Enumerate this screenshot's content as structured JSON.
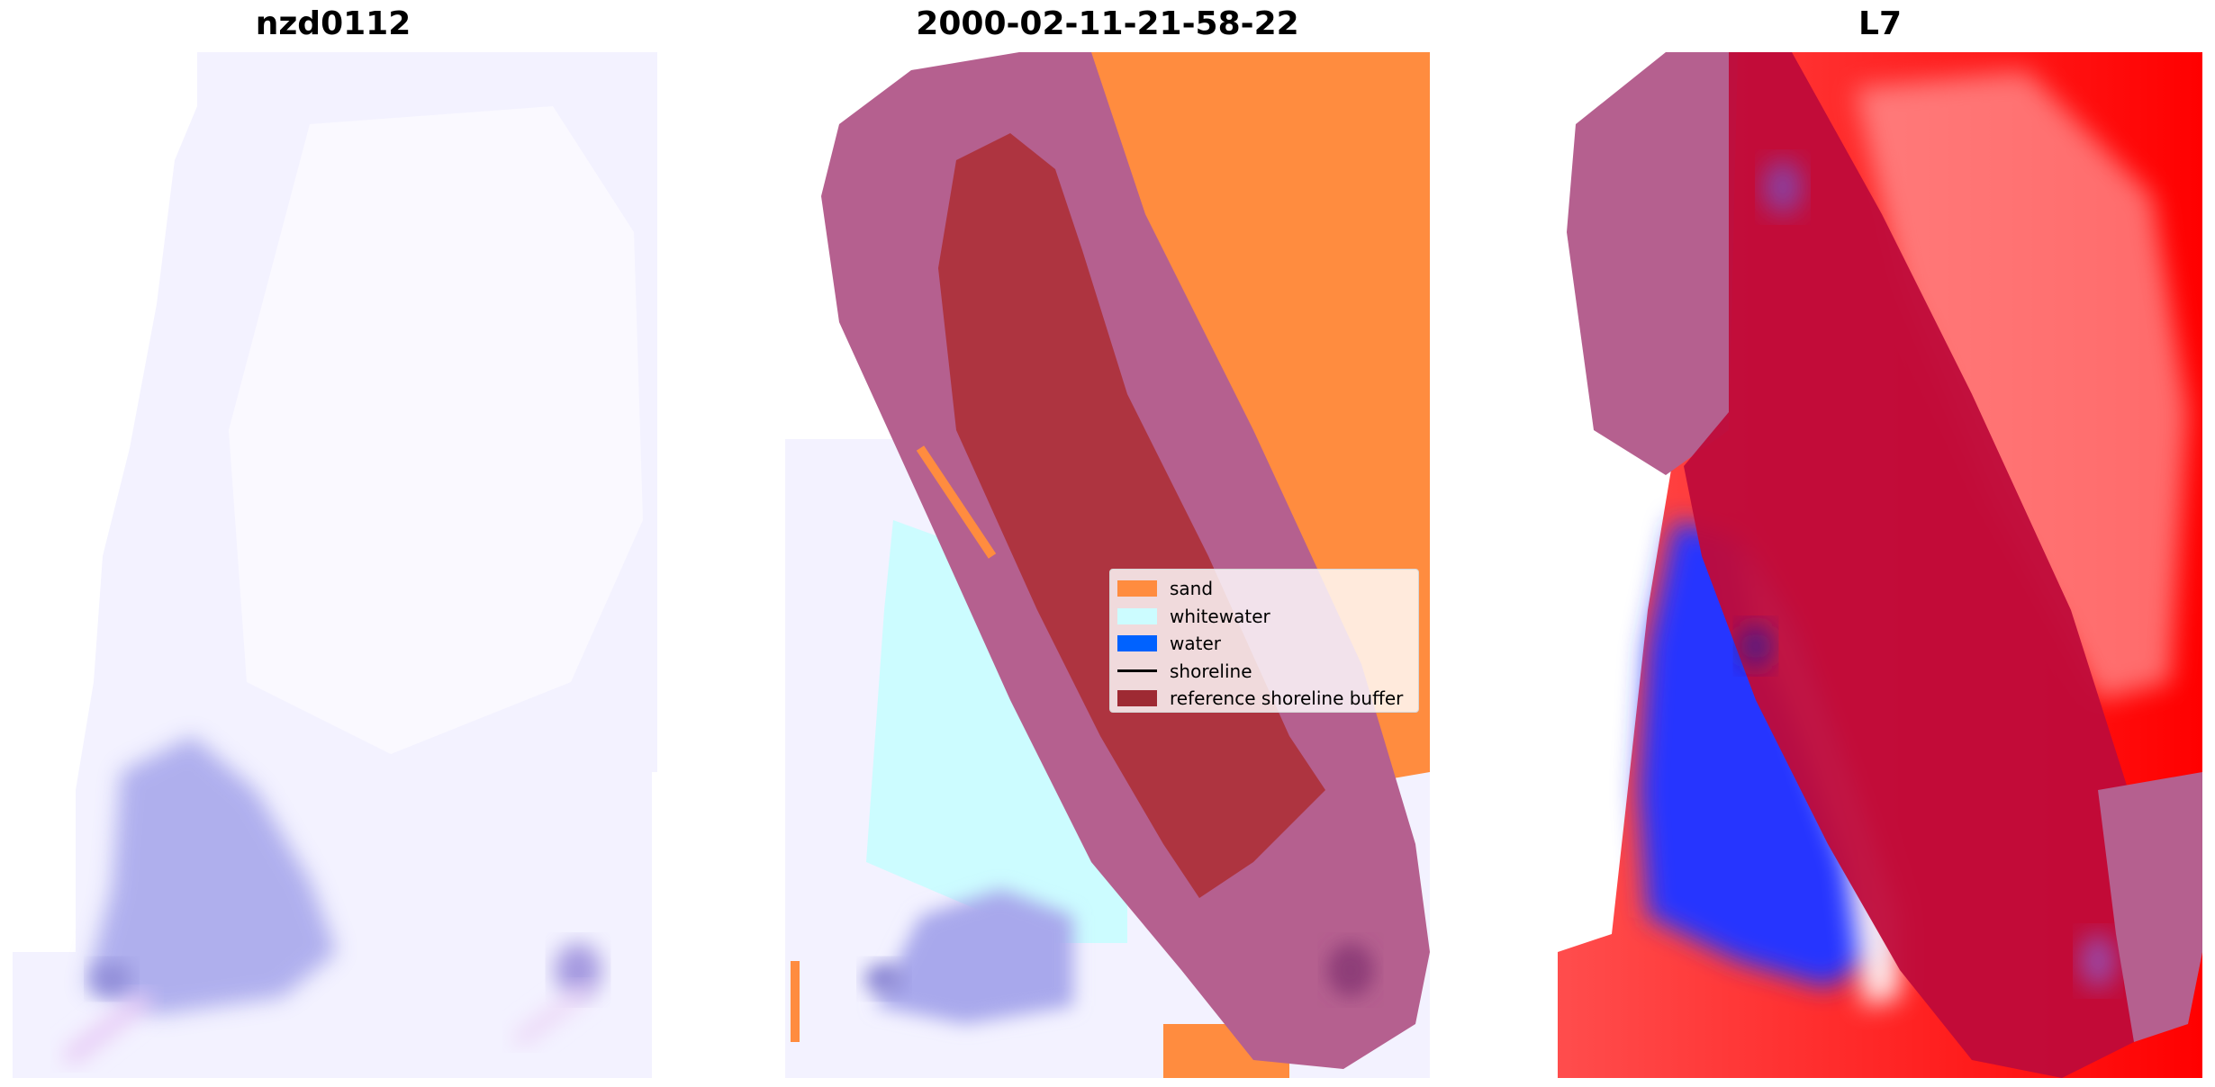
{
  "panels": [
    {
      "title": "nzd0112"
    },
    {
      "title": "2000-02-11-21-58-22"
    },
    {
      "title": "L7"
    }
  ],
  "legend": {
    "items": [
      {
        "label": "sand",
        "kind": "patch",
        "color": "#ff8c3f"
      },
      {
        "label": "whitewater",
        "kind": "patch",
        "color": "#ccfcff"
      },
      {
        "label": "water",
        "kind": "patch",
        "color": "#0062ff"
      },
      {
        "label": "shoreline",
        "kind": "line",
        "color": "#000000"
      },
      {
        "label": "reference shoreline buffer",
        "kind": "patch",
        "color": "#9e2a33"
      }
    ]
  },
  "colors": {
    "sand": "#ff8c3f",
    "whitewater": "#ccfcff",
    "water": "#0062ff",
    "buffer_overlay": "#b5608f",
    "buffer_on_sand": "#ae3440",
    "rgb_background": "#f3f2ff",
    "rgb_dark_patch": "#9a9ae6",
    "index_positive": "#ff0000",
    "index_negative": "#1f2fff",
    "index_buffer": "#bf0b3a"
  }
}
